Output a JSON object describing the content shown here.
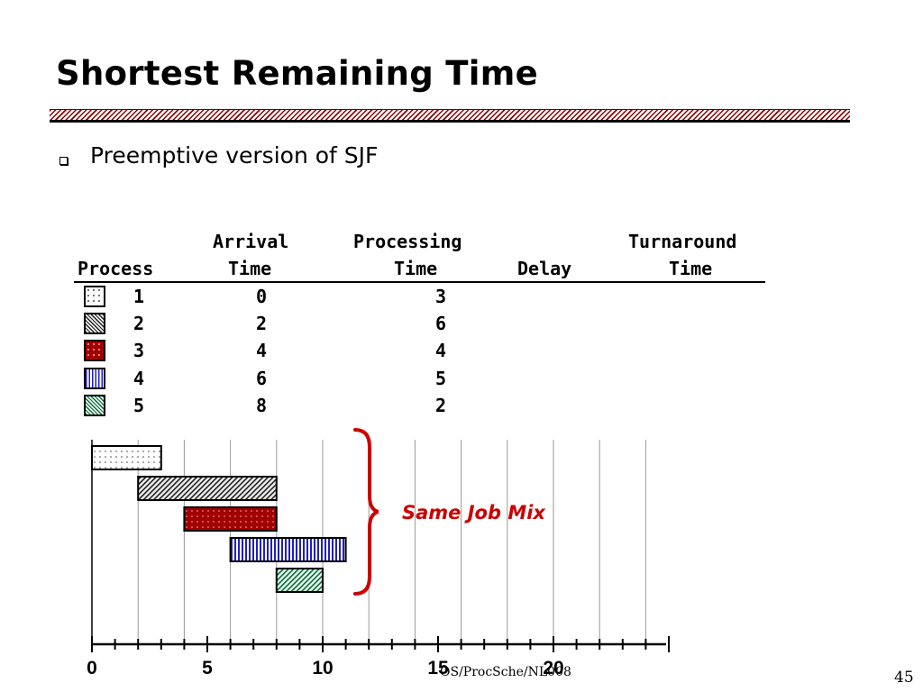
{
  "slide": {
    "title": "Shortest Remaining Time",
    "bullet": "Preemptive version of SJF",
    "annotation": "Same Job Mix",
    "footer": "OS/ProcSche/NL008",
    "page_number": "45"
  },
  "table": {
    "headers_top": [
      "",
      "Arrival",
      "Processing",
      "",
      "Turnaround"
    ],
    "headers_bottom": [
      "Process",
      "Time",
      "Time",
      "Delay",
      "Time"
    ],
    "rows": [
      {
        "process": "1",
        "arrival": "0",
        "processing": "3",
        "pattern": "dotted-white"
      },
      {
        "process": "2",
        "arrival": "2",
        "processing": "6",
        "pattern": "hatched-gray"
      },
      {
        "process": "3",
        "arrival": "4",
        "processing": "4",
        "pattern": "dotted-red"
      },
      {
        "process": "4",
        "arrival": "6",
        "processing": "5",
        "pattern": "striped-blue"
      },
      {
        "process": "5",
        "arrival": "8",
        "processing": "2",
        "pattern": "hatched-green"
      }
    ]
  },
  "chart_data": {
    "type": "bar",
    "orientation": "horizontal-gantt",
    "x_ticks": [
      "0",
      "5",
      "10",
      "15",
      "20"
    ],
    "xlim": [
      0,
      25
    ],
    "grid": true,
    "bars": [
      {
        "process": "1",
        "start": 0,
        "end": 3,
        "pattern": "p1"
      },
      {
        "process": "2",
        "start": 2,
        "end": 8,
        "pattern": "p2"
      },
      {
        "process": "3",
        "start": 4,
        "end": 8,
        "pattern": "p3"
      },
      {
        "process": "4",
        "start": 6,
        "end": 11,
        "pattern": "p4"
      },
      {
        "process": "5",
        "start": 8,
        "end": 10,
        "pattern": "p5"
      }
    ],
    "colors": {
      "p1": "#ffffff",
      "p2": "#888888",
      "p3": "#a00000",
      "p4": "#2020c0",
      "p5": "#0a6b3b",
      "brace": "#cc0000",
      "annotation": "#cc0000"
    }
  }
}
